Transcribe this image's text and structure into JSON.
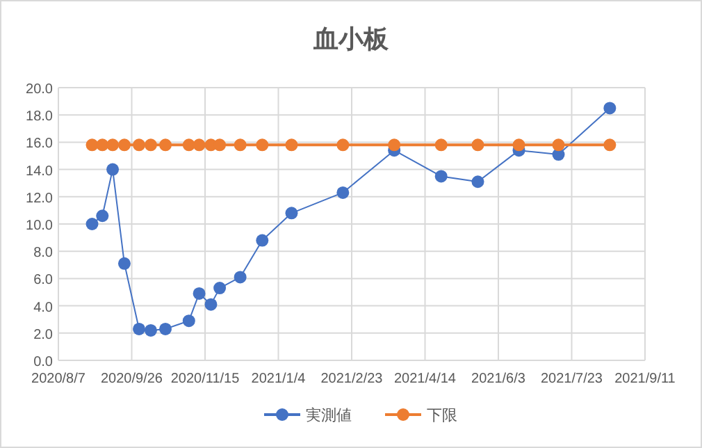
{
  "chart_data": {
    "type": "line",
    "title": "血小板",
    "x": [
      "2020-08-30",
      "2020-09-06",
      "2020-09-13",
      "2020-09-21",
      "2020-10-01",
      "2020-10-09",
      "2020-10-19",
      "2020-11-04",
      "2020-11-11",
      "2020-11-19",
      "2020-11-25",
      "2020-12-09",
      "2020-12-24",
      "2021-01-13",
      "2021-02-17",
      "2021-03-24",
      "2021-04-25",
      "2021-05-20",
      "2021-06-17",
      "2021-07-14",
      "2021-08-18"
    ],
    "series": [
      {
        "name": "実測値",
        "color": "#4472c4",
        "values": [
          10.0,
          10.6,
          14.0,
          7.1,
          2.3,
          2.2,
          2.3,
          2.9,
          4.9,
          4.1,
          5.3,
          6.1,
          8.8,
          10.8,
          12.3,
          15.4,
          13.5,
          13.1,
          15.4,
          15.1,
          18.5
        ]
      },
      {
        "name": "下限",
        "color": "#ed7d31",
        "values": [
          15.8,
          15.8,
          15.8,
          15.8,
          15.8,
          15.8,
          15.8,
          15.8,
          15.8,
          15.8,
          15.8,
          15.8,
          15.8,
          15.8,
          15.8,
          15.8,
          15.8,
          15.8,
          15.8,
          15.8,
          15.8
        ]
      }
    ],
    "xlim": [
      "2020-08-07",
      "2021-09-11"
    ],
    "xticks": [
      {
        "value": "2020-08-07",
        "label": "2020/8/7"
      },
      {
        "value": "2020-09-26",
        "label": "2020/9/26"
      },
      {
        "value": "2020-11-15",
        "label": "2020/11/15"
      },
      {
        "value": "2021-01-04",
        "label": "2021/1/4"
      },
      {
        "value": "2021-02-23",
        "label": "2021/2/23"
      },
      {
        "value": "2021-04-14",
        "label": "2021/4/14"
      },
      {
        "value": "2021-06-03",
        "label": "2021/6/3"
      },
      {
        "value": "2021-07-23",
        "label": "2021/7/23"
      },
      {
        "value": "2021-09-11",
        "label": "2021/9/11"
      }
    ],
    "ylim": [
      0,
      20
    ],
    "yticks": [
      {
        "value": 0,
        "label": "0.0"
      },
      {
        "value": 2,
        "label": "2.0"
      },
      {
        "value": 4,
        "label": "4.0"
      },
      {
        "value": 6,
        "label": "6.0"
      },
      {
        "value": 8,
        "label": "8.0"
      },
      {
        "value": 10,
        "label": "10.0"
      },
      {
        "value": 12,
        "label": "12.0"
      },
      {
        "value": 14,
        "label": "14.0"
      },
      {
        "value": 16,
        "label": "16.0"
      },
      {
        "value": 18,
        "label": "18.0"
      },
      {
        "value": 20,
        "label": "20.0"
      }
    ],
    "grid": true,
    "legend": "bottom",
    "marker": "circle",
    "line_style": "solid"
  }
}
